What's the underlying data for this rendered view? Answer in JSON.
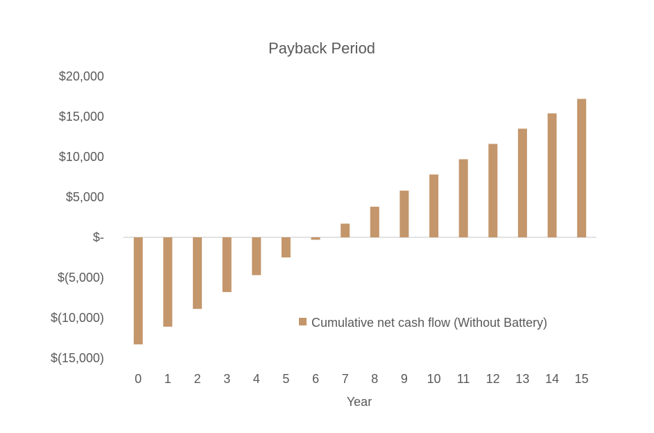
{
  "chart_data": {
    "type": "bar",
    "title": "Payback Period",
    "xlabel": "Year",
    "ylabel": "",
    "categories": [
      "0",
      "1",
      "2",
      "3",
      "4",
      "5",
      "6",
      "7",
      "8",
      "9",
      "10",
      "11",
      "12",
      "13",
      "14",
      "15"
    ],
    "series": [
      {
        "name": "Cumulative net cash flow (Without Battery)",
        "values": [
          -13300,
          -11100,
          -8900,
          -6800,
          -4700,
          -2500,
          -300,
          1700,
          3800,
          5800,
          7800,
          9700,
          11600,
          13500,
          15400,
          17200
        ],
        "color": "#c4966b"
      }
    ],
    "ylim": [
      -15000,
      20000
    ],
    "yticks": [
      {
        "value": 20000,
        "label": "$20,000"
      },
      {
        "value": 15000,
        "label": "$15,000"
      },
      {
        "value": 10000,
        "label": "$10,000"
      },
      {
        "value": 5000,
        "label": "$5,000"
      },
      {
        "value": 0,
        "label": "$-"
      },
      {
        "value": -5000,
        "label": "$(5,000)"
      },
      {
        "value": -10000,
        "label": "$(10,000)"
      },
      {
        "value": -15000,
        "label": "$(15,000)"
      }
    ],
    "grid": false,
    "legend": "bottom-right",
    "axis_color": "#d9d9d9"
  }
}
